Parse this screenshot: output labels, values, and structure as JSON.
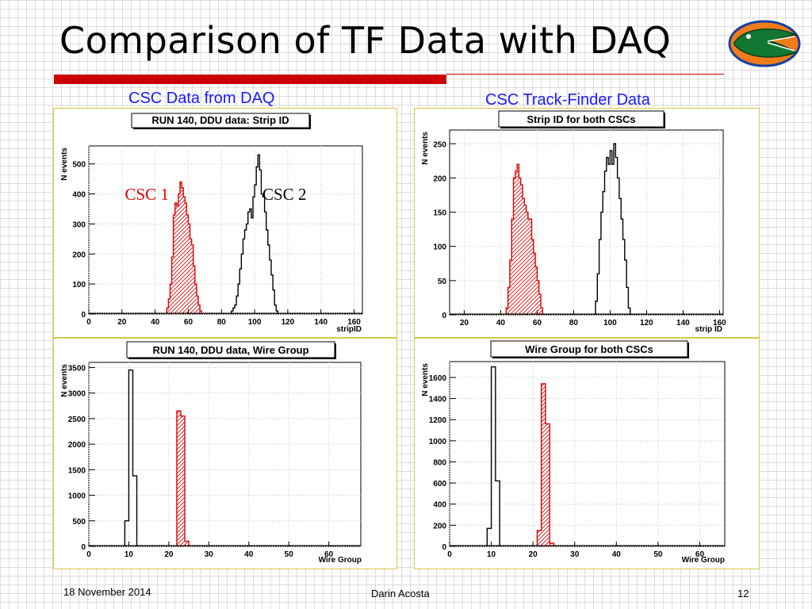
{
  "slide": {
    "title": "Comparison of TF Data with DAQ",
    "left_heading": "CSC Data from DAQ",
    "right_heading": "CSC Track-Finder Data",
    "footer_date": "18 November 2014",
    "footer_author": "Darin Acosta",
    "page_number": "12",
    "accent_color": "#cc0000",
    "heading_color": "#1a1aff",
    "logo_icon": "florida-gator-logo"
  },
  "chart_data": [
    {
      "type": "bar",
      "style": "histogram-step",
      "title": "RUN 140, DDU data: Strip ID",
      "xlabel": "stripID",
      "ylabel": "N events",
      "xlim": [
        0,
        165
      ],
      "ylim": [
        0,
        560
      ],
      "xticks": [
        0,
        20,
        40,
        60,
        80,
        100,
        120,
        140,
        160
      ],
      "yticks": [
        0,
        100,
        200,
        300,
        400,
        500
      ],
      "bin_width": 1,
      "grid": true,
      "annotations": [
        {
          "text": "CSC 1",
          "color": "#dd0000",
          "x": 35,
          "y": 380
        },
        {
          "text": "CSC 2",
          "color": "#000000",
          "x": 118,
          "y": 380
        }
      ],
      "series": [
        {
          "name": "CSC 1",
          "color": "#dd0000",
          "hatched": true,
          "x_start": 47,
          "values": [
            20,
            50,
            100,
            190,
            330,
            370,
            360,
            400,
            440,
            420,
            390,
            370,
            330,
            300,
            250,
            230,
            160,
            100,
            60,
            30,
            10
          ]
        },
        {
          "name": "CSC 2",
          "color": "#000000",
          "hatched": false,
          "x_start": 86,
          "values": [
            10,
            20,
            30,
            60,
            100,
            150,
            200,
            250,
            280,
            300,
            340,
            350,
            320,
            390,
            430,
            490,
            530,
            480,
            400,
            390,
            340,
            280,
            230,
            180,
            130,
            80,
            30,
            10
          ]
        }
      ]
    },
    {
      "type": "bar",
      "style": "histogram-step",
      "title": "Strip ID for both CSCs",
      "xlabel": "strip ID",
      "ylabel": "N events",
      "xlim": [
        12,
        162
      ],
      "ylim": [
        0,
        270
      ],
      "xticks": [
        20,
        40,
        60,
        80,
        100,
        120,
        140,
        160
      ],
      "yticks": [
        0,
        50,
        100,
        150,
        200,
        250
      ],
      "bin_width": 1,
      "grid": true,
      "series": [
        {
          "name": "CSC 1",
          "color": "#dd0000",
          "hatched": true,
          "x_start": 43,
          "values": [
            10,
            40,
            80,
            140,
            200,
            210,
            220,
            200,
            190,
            170,
            160,
            150,
            140,
            140,
            110,
            90,
            70,
            50,
            30,
            10
          ]
        },
        {
          "name": "CSC 2",
          "color": "#000000",
          "hatched": false,
          "x_start": 92,
          "values": [
            20,
            60,
            110,
            150,
            180,
            210,
            230,
            220,
            240,
            220,
            250,
            230,
            200,
            170,
            140,
            110,
            80,
            40,
            10
          ]
        }
      ]
    },
    {
      "type": "bar",
      "style": "histogram-step",
      "title": "RUN 140, DDU data, Wire Group",
      "xlabel": "Wire Group",
      "ylabel": "N events",
      "xlim": [
        0,
        68
      ],
      "ylim": [
        0,
        3600
      ],
      "xticks": [
        0,
        10,
        20,
        30,
        40,
        50,
        60
      ],
      "yticks": [
        0,
        500,
        1000,
        1500,
        2000,
        2500,
        3000,
        3500
      ],
      "bin_width": 1,
      "grid": true,
      "series": [
        {
          "name": "CSC 1",
          "color": "#dd0000",
          "hatched": true,
          "x_start": 22,
          "values": [
            2650,
            2550,
            100
          ]
        },
        {
          "name": "CSC 2",
          "color": "#000000",
          "hatched": false,
          "x_start": 9,
          "values": [
            500,
            3450,
            1380
          ]
        }
      ]
    },
    {
      "type": "bar",
      "style": "histogram-step",
      "title": "Wire Group for both CSCs",
      "xlabel": "Wire Group",
      "ylabel": "N events",
      "xlim": [
        0,
        66
      ],
      "ylim": [
        0,
        1750
      ],
      "xticks": [
        0,
        10,
        20,
        30,
        40,
        50,
        60
      ],
      "yticks": [
        0,
        200,
        400,
        600,
        800,
        1000,
        1200,
        1400,
        1600
      ],
      "bin_width": 1,
      "grid": true,
      "series": [
        {
          "name": "CSC 1",
          "color": "#dd0000",
          "hatched": true,
          "x_start": 21,
          "values": [
            150,
            1540,
            1160,
            30
          ]
        },
        {
          "name": "CSC 2",
          "color": "#000000",
          "hatched": false,
          "x_start": 9,
          "values": [
            170,
            1700,
            620
          ]
        }
      ]
    }
  ]
}
